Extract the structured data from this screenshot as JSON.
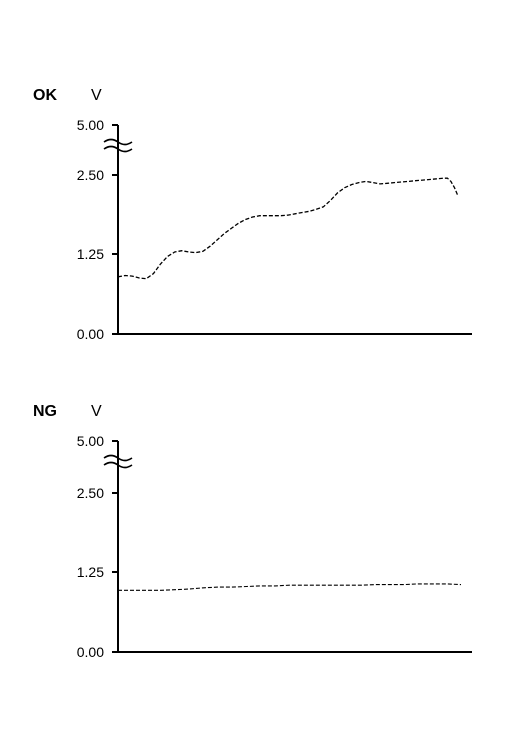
{
  "chart_data": [
    {
      "type": "line",
      "status_label": "OK",
      "unit_label": "V",
      "y_ticks": [
        "0.00",
        "1.25",
        "2.50",
        "5.00"
      ],
      "axis_break": "between 2.50 and 5.00",
      "grid": false,
      "x": [
        0,
        2,
        4,
        6,
        8,
        10,
        12,
        14,
        16,
        18,
        20,
        22,
        24,
        26,
        28,
        30,
        32,
        34,
        36,
        38,
        40,
        42,
        44,
        46,
        48,
        50,
        52,
        54,
        56,
        58,
        60,
        62,
        64,
        66,
        68,
        70,
        72,
        74,
        76,
        78,
        80,
        82,
        84,
        86,
        88,
        90,
        92,
        93,
        94,
        95,
        96
      ],
      "series": [
        {
          "values": [
            0.9,
            0.92,
            0.91,
            0.88,
            0.87,
            0.95,
            1.1,
            1.22,
            1.29,
            1.31,
            1.29,
            1.28,
            1.3,
            1.38,
            1.48,
            1.58,
            1.66,
            1.74,
            1.8,
            1.84,
            1.86,
            1.86,
            1.86,
            1.86,
            1.87,
            1.89,
            1.91,
            1.93,
            1.96,
            2.0,
            2.1,
            2.22,
            2.3,
            2.35,
            2.38,
            2.4,
            2.38,
            2.36,
            2.37,
            2.38,
            2.39,
            2.4,
            2.41,
            2.42,
            2.43,
            2.44,
            2.45,
            2.45,
            2.4,
            2.3,
            2.17
          ]
        }
      ]
    },
    {
      "type": "line",
      "status_label": "NG",
      "unit_label": "V",
      "y_ticks": [
        "0.00",
        "1.25",
        "2.50",
        "5.00"
      ],
      "axis_break": "between 2.50 and 5.00",
      "grid": false,
      "x": [
        0,
        4,
        8,
        12,
        16,
        20,
        24,
        28,
        32,
        36,
        40,
        44,
        48,
        52,
        56,
        60,
        64,
        68,
        72,
        76,
        80,
        84,
        88,
        92,
        96
      ],
      "series": [
        {
          "values": [
            0.97,
            0.97,
            0.97,
            0.97,
            0.98,
            0.99,
            1.01,
            1.02,
            1.02,
            1.03,
            1.04,
            1.04,
            1.05,
            1.05,
            1.05,
            1.05,
            1.05,
            1.05,
            1.06,
            1.06,
            1.06,
            1.07,
            1.07,
            1.07,
            1.06
          ]
        }
      ]
    }
  ]
}
